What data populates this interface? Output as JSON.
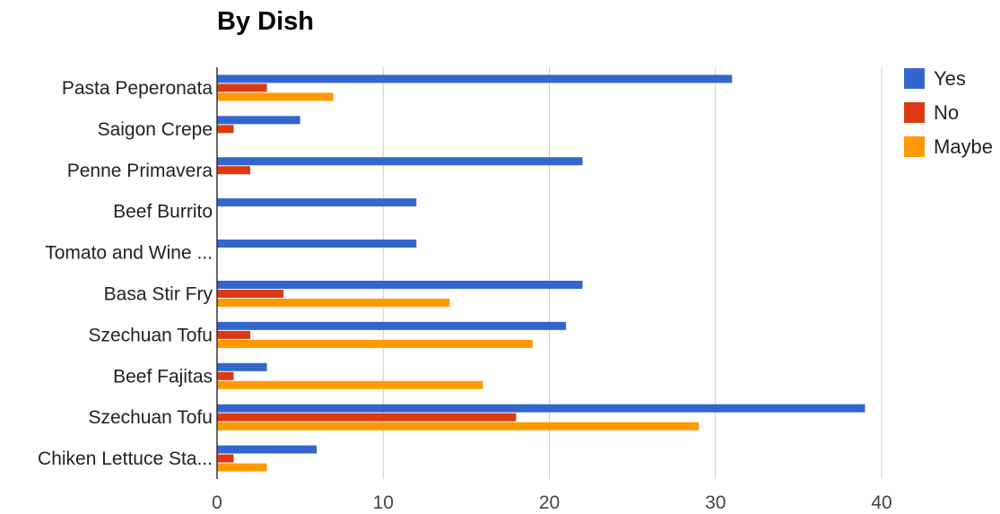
{
  "chart_data": {
    "type": "bar",
    "orientation": "horizontal",
    "title": "By Dish",
    "xlabel": "",
    "ylabel": "",
    "xlim": [
      0,
      40
    ],
    "xticks": [
      0,
      10,
      20,
      30,
      40
    ],
    "grid": true,
    "legend_position": "right",
    "categories": [
      "Pasta Peperonata",
      "Saigon Crepe",
      "Penne Primavera",
      "Beef Burrito",
      "Tomato and Wine ...",
      "Basa Stir Fry",
      "Szechuan Tofu",
      "Beef Fajitas",
      "Szechuan Tofu",
      "Chiken Lettuce Sta..."
    ],
    "series": [
      {
        "name": "Yes",
        "color": "#3366cc",
        "values": [
          31,
          5,
          22,
          12,
          12,
          22,
          21,
          3,
          39,
          6
        ]
      },
      {
        "name": "No",
        "color": "#dc3912",
        "values": [
          3,
          1,
          2,
          0,
          0,
          4,
          2,
          1,
          18,
          1
        ]
      },
      {
        "name": "Maybe",
        "color": "#ff9900",
        "values": [
          7,
          0,
          0,
          0,
          0,
          14,
          19,
          16,
          29,
          3
        ]
      }
    ]
  }
}
